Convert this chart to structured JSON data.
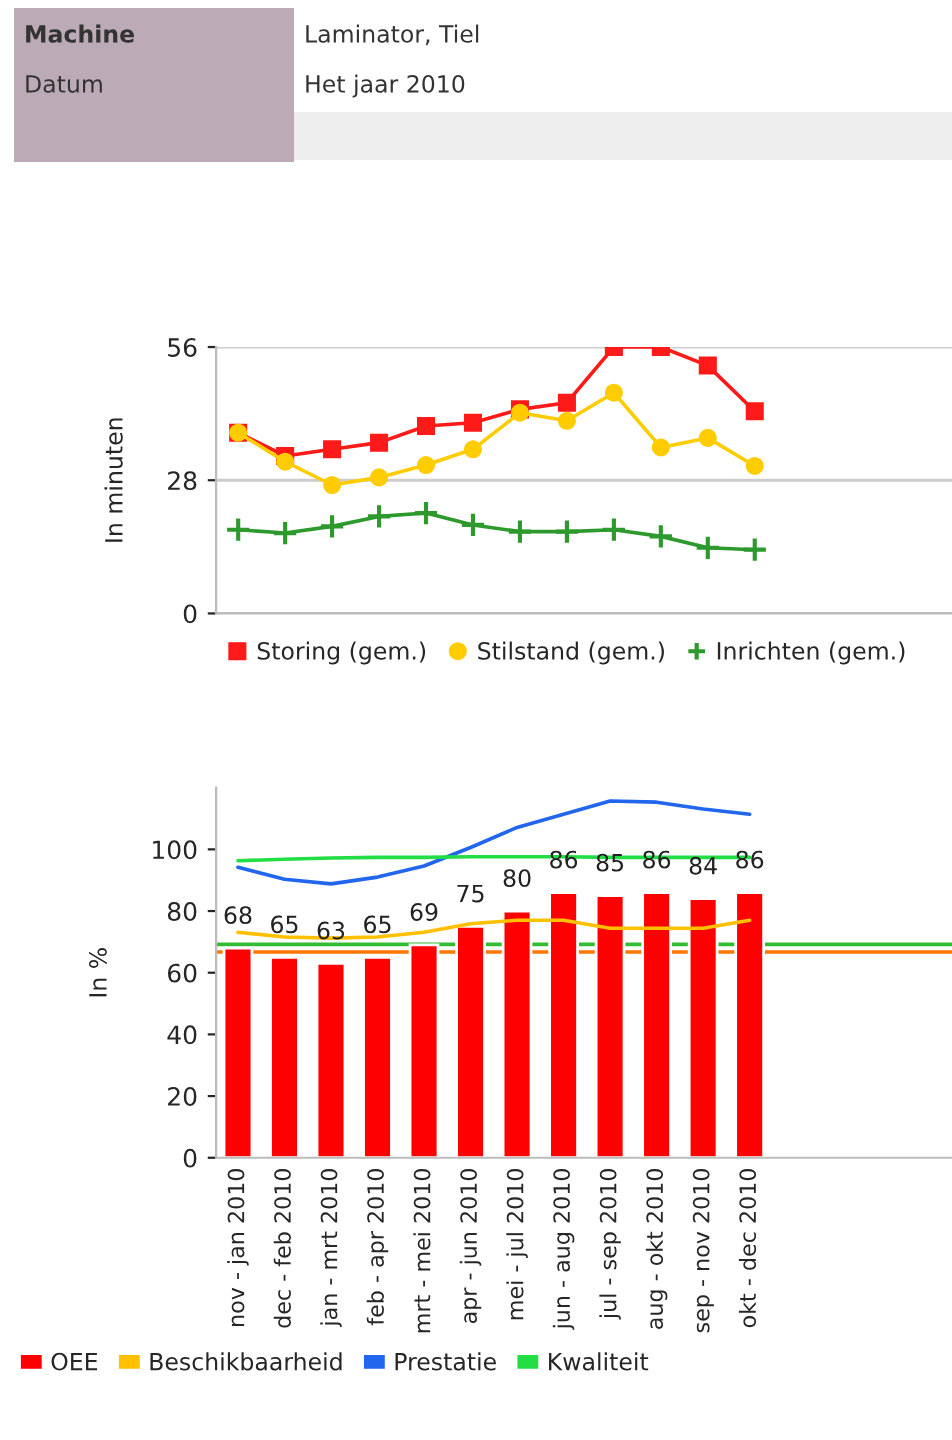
{
  "chart_data": [
    {
      "type": "line",
      "ylabel": "In minuten",
      "annotations": [
        "Machine",
        "Laminator, Tiel",
        "Datum",
        "Het jaar 2010"
      ],
      "categories": [
        null,
        null,
        null,
        null,
        null,
        null,
        null,
        null,
        null,
        null,
        null,
        null
      ],
      "series": [
        {
          "name": "Storing (gem.)",
          "color": "#ff1a1a",
          "marker": "square",
          "values": [
            38.0,
            33.1,
            34.5,
            35.9,
            39.4,
            40.1,
            42.9,
            44.3,
            56,
            56,
            52.1,
            42.5
          ]
        },
        {
          "name": "Stilstand (gem.)",
          "color": "#ffcc00",
          "marker": "circle",
          "values": [
            38.0,
            31.9,
            27.0,
            28.6,
            31.2,
            34.5,
            42.2,
            40.5,
            46.4,
            34.9,
            36.9,
            31.0
          ]
        },
        {
          "name": "Inrichten (gem.)",
          "color": "#2e9a2e",
          "marker": "cross",
          "values": [
            17.6,
            16.9,
            18.3,
            20.4,
            21.1,
            18.6,
            17.2,
            17.2,
            17.6,
            16.2,
            13.8,
            13.4
          ]
        }
      ],
      "ylim": [
        0,
        56
      ],
      "yticks": [
        0,
        28,
        56
      ],
      "grid": "y",
      "legend": "bottom",
      "tick_labels": "y"
    },
    {
      "type": "bar",
      "ylabel": "In %",
      "categories": [
        "nov - jan 2010",
        "dec - feb 2010",
        "jan - mrt 2010",
        "feb - apr 2010",
        "mrt - mei 2010",
        "apr - jun 2010",
        "mei - jul 2010",
        "jun - aug 2010",
        "jul - sep 2010",
        "aug - okt 2010",
        "sep - nov 2010",
        "okt - dec 2010"
      ],
      "series": [
        {
          "name": "OEE",
          "color": "#ff0000",
          "values": [
            68,
            65,
            63,
            65,
            69,
            75,
            80,
            86,
            85,
            86,
            84,
            86
          ],
          "value_labels": [
            "68",
            "65",
            "63",
            "65",
            "69",
            "75",
            "80",
            "86",
            "85",
            "86",
            "84",
            "86"
          ]
        },
        {
          "name": "Beschikbaarheid",
          "type": "line",
          "color": "#ffc000",
          "values": [
            73.1,
            71.6,
            71.2,
            71.6,
            73.1,
            75.9,
            77.0,
            77.0,
            74.4,
            74.4,
            74.4,
            77.0
          ]
        },
        {
          "name": "Prestatie",
          "type": "line",
          "color": "#2266ee",
          "values": [
            94.2,
            90.3,
            88.8,
            91.0,
            94.6,
            100.6,
            107.1,
            111.4,
            115.7,
            115.3,
            113.1,
            111.4
          ]
        },
        {
          "name": "Kwaliteit",
          "type": "line",
          "color": "#22dd44",
          "values": [
            96.3,
            96.8,
            97.2,
            97.4,
            97.4,
            97.6,
            97.6,
            97.6,
            97.4,
            97.4,
            97.4,
            97.4
          ]
        }
      ],
      "ref_lines": [
        {
          "axis": "y",
          "value": 69.2,
          "color": "#33bb33"
        },
        {
          "axis": "y",
          "value": 66.7,
          "color": "#ff7700"
        }
      ],
      "ylim": [
        0,
        120
      ],
      "yticks": [
        0,
        20,
        40,
        60,
        80,
        100
      ],
      "grid": false,
      "legend": "bottom"
    }
  ]
}
